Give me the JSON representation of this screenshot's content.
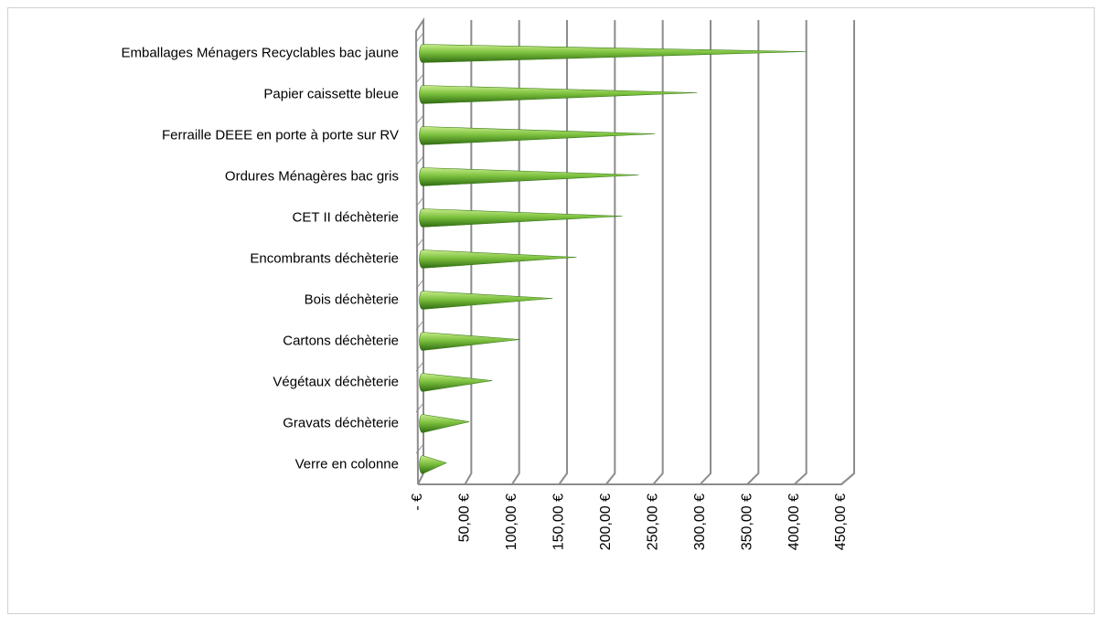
{
  "chart_data": {
    "type": "cone-bar",
    "categories": [
      "Emballages Ménagers Recyclables bac jaune",
      "Papier caissette bleue",
      "Ferraille DEEE en porte à porte sur RV",
      "Ordures Ménagères bac gris",
      "CET II déchèterie",
      "Encombrants déchèterie",
      "Bois déchèterie",
      "Cartons déchèterie",
      "Végétaux déchèterie",
      "Gravats déchèterie",
      "Verre en colonne"
    ],
    "values": [
      400,
      286,
      242,
      225,
      208,
      160,
      135,
      101,
      72,
      48,
      24
    ],
    "color": "#6aa832",
    "xlim": [
      0,
      450
    ],
    "xticks": [
      {
        "value": 0,
        "label": "-  €"
      },
      {
        "value": 50,
        "label": "50,00 €"
      },
      {
        "value": 100,
        "label": "100,00 €"
      },
      {
        "value": 150,
        "label": "150,00 €"
      },
      {
        "value": 200,
        "label": "200,00 €"
      },
      {
        "value": 250,
        "label": "250,00 €"
      },
      {
        "value": 300,
        "label": "300,00 €"
      },
      {
        "value": 350,
        "label": "350,00 €"
      },
      {
        "value": 400,
        "label": "400,00 €"
      },
      {
        "value": 450,
        "label": "450,00 €"
      }
    ],
    "grid": true
  }
}
